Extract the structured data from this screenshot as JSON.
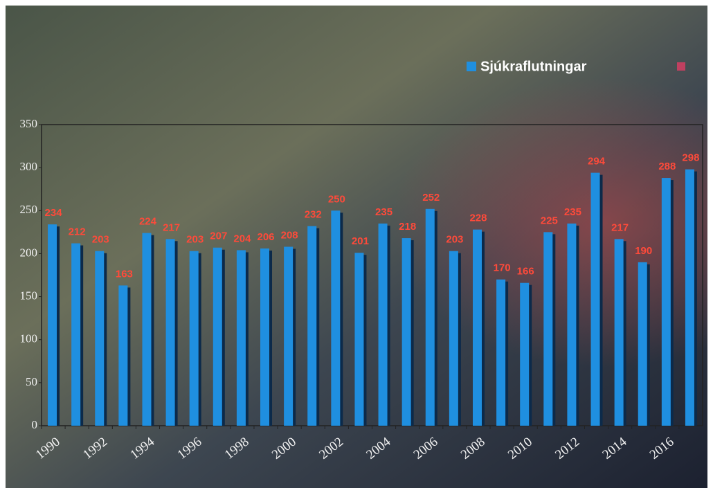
{
  "chart_data": {
    "type": "bar",
    "categories": [
      "1990",
      null,
      "1992",
      null,
      "1994",
      null,
      "1996",
      null,
      "1998",
      null,
      "2000",
      null,
      "2002",
      null,
      "2004",
      null,
      "2006",
      null,
      "2008",
      null,
      "2010",
      null,
      "2012",
      null,
      "2014",
      null,
      "2016",
      null
    ],
    "series": [
      {
        "name": "Sjúkraflutningar",
        "color": "#1f8fe0",
        "values": [
          234,
          212,
          203,
          163,
          224,
          217,
          203,
          207,
          204,
          206,
          208,
          232,
          250,
          201,
          235,
          218,
          252,
          203,
          228,
          170,
          166,
          225,
          235,
          294,
          217,
          190,
          288,
          298
        ]
      }
    ],
    "value_label_color": "#ff4a3a",
    "ylim": [
      0,
      350
    ],
    "yticks": [
      0,
      50,
      100,
      150,
      200,
      250,
      300,
      350
    ]
  }
}
